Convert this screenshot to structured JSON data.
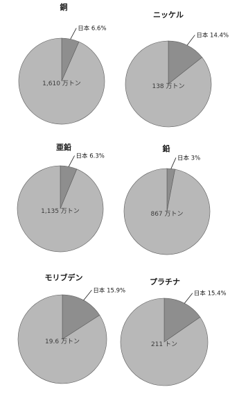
{
  "chart_data": [
    {
      "type": "pie",
      "title": "銅",
      "categories": [
        "日本",
        ""
      ],
      "values": [
        6.6,
        93.4
      ],
      "data_labels": [
        "日本 6.6%",
        "1,610 万トン"
      ],
      "colors": [
        "#8e8e8e",
        "#b8b8b8"
      ]
    },
    {
      "type": "pie",
      "title": "ニッケル",
      "categories": [
        "日本",
        ""
      ],
      "values": [
        14.4,
        85.6
      ],
      "data_labels": [
        "日本 14.4%",
        "138 万トン"
      ],
      "colors": [
        "#8e8e8e",
        "#b8b8b8"
      ]
    },
    {
      "type": "pie",
      "title": "亜鉛",
      "categories": [
        "日本",
        ""
      ],
      "values": [
        6.3,
        93.7
      ],
      "data_labels": [
        "日本 6.3%",
        "1,135 万トン"
      ],
      "colors": [
        "#8e8e8e",
        "#b8b8b8"
      ]
    },
    {
      "type": "pie",
      "title": "鉛",
      "categories": [
        "日本",
        ""
      ],
      "values": [
        3,
        97
      ],
      "data_labels": [
        "日本 3%",
        "867 万トン"
      ],
      "colors": [
        "#8e8e8e",
        "#b8b8b8"
      ]
    },
    {
      "type": "pie",
      "title": "モリブデン",
      "categories": [
        "日本",
        ""
      ],
      "values": [
        15.9,
        84.1
      ],
      "data_labels": [
        "日本 15.9%",
        "19.6 万トン"
      ],
      "colors": [
        "#8e8e8e",
        "#b8b8b8"
      ]
    },
    {
      "type": "pie",
      "title": "プラチナ",
      "categories": [
        "日本",
        ""
      ],
      "values": [
        15.4,
        84.6
      ],
      "data_labels": [
        "日本 15.4%",
        "211 トン"
      ],
      "colors": [
        "#8e8e8e",
        "#b8b8b8"
      ]
    }
  ]
}
